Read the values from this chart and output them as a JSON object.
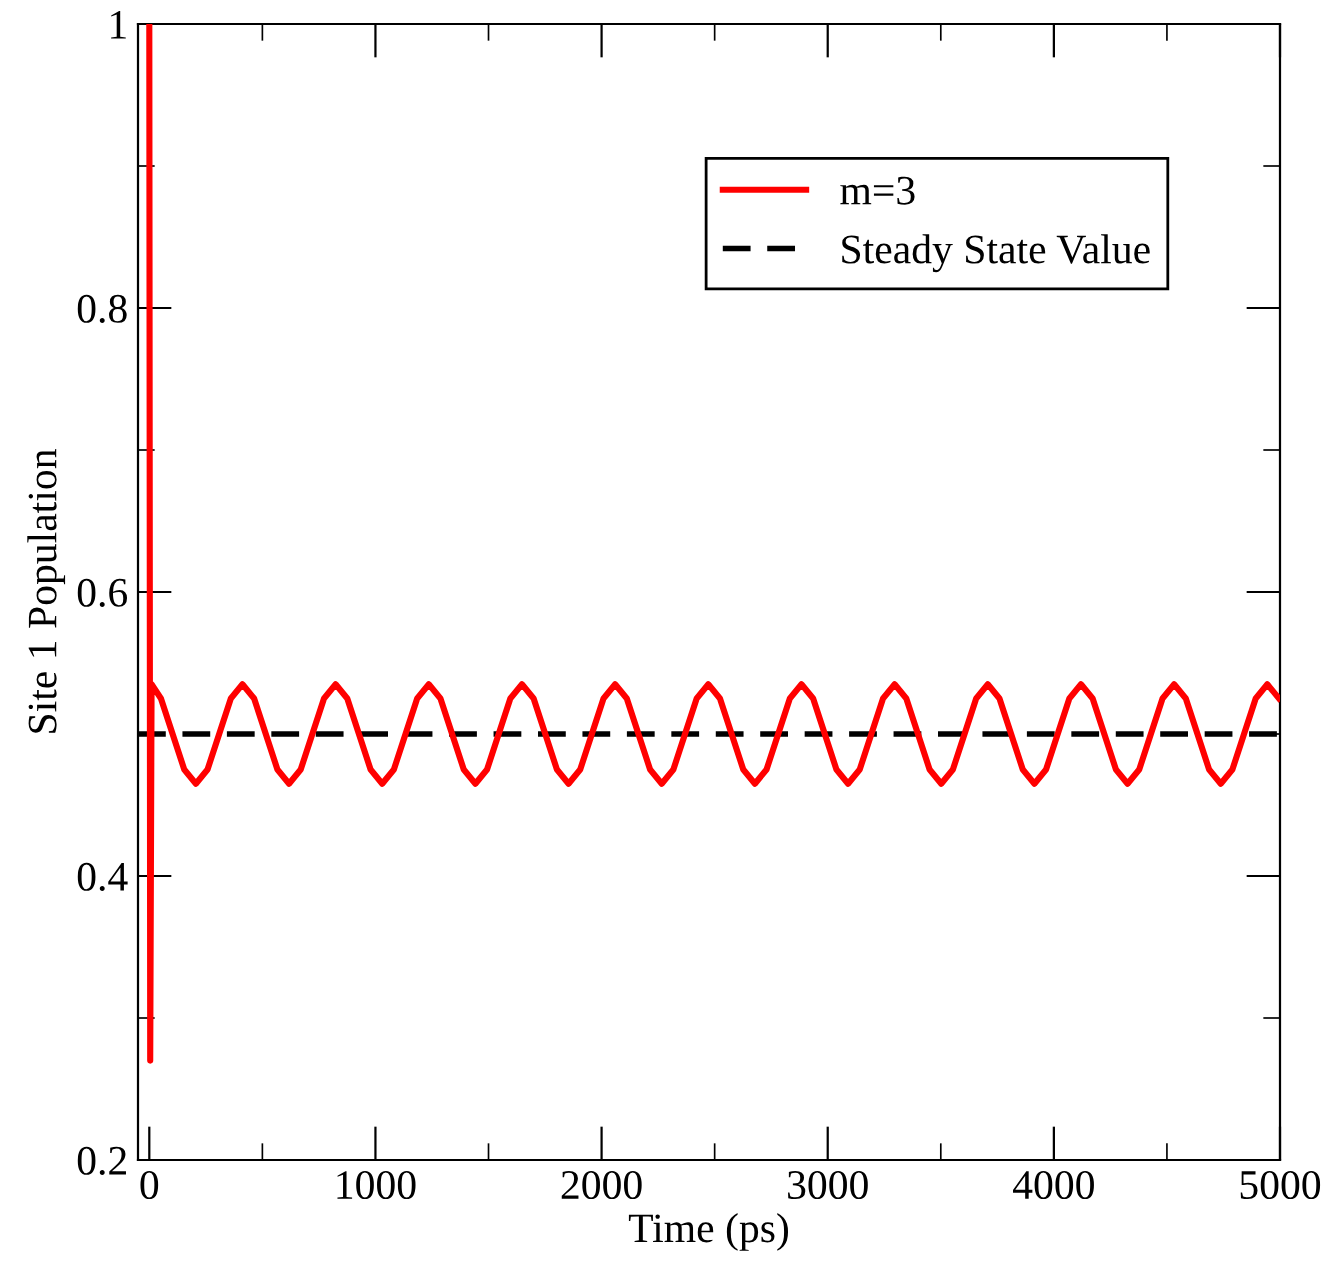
{
  "chart_data": {
    "type": "line",
    "xlabel": "Time (ps)",
    "ylabel": "Site 1 Population",
    "xlim": [
      -50,
      5000
    ],
    "ylim": [
      0.2,
      1
    ],
    "xticks": [
      0,
      {
        "value": 500,
        "label": null
      },
      1000,
      {
        "value": 1500,
        "label": null
      },
      2000,
      {
        "value": 2500,
        "label": null
      },
      3000,
      {
        "value": 3500,
        "label": null
      },
      4000,
      {
        "value": 4500,
        "label": null
      },
      5000
    ],
    "yticks": [
      0.2,
      {
        "value": 0.3,
        "label": null
      },
      0.4,
      {
        "value": 0.5,
        "label": null
      },
      0.6,
      {
        "value": 0.7,
        "label": null
      },
      0.8,
      {
        "value": 0.9,
        "label": null
      },
      1
    ],
    "grid": false,
    "legend": "top right",
    "marker": "none",
    "line_style": "solid",
    "series": [
      {
        "name": "m=3",
        "color": "#ff0000",
        "x": [
          0,
          4,
          10,
          51.5,
          103,
          154.5,
          206,
          257.5,
          309,
          360.5,
          412,
          463.5,
          515,
          566.5,
          618,
          669.5,
          721,
          772.5,
          824,
          875.5,
          927,
          978.5,
          1030,
          1081.5,
          1133,
          1184.5,
          1236,
          1287.5,
          1339,
          1390.5,
          1442,
          1493.5,
          1545,
          1596.5,
          1648,
          1699.5,
          1751,
          1802.5,
          1854,
          1905.5,
          1957,
          2008.5,
          2060,
          2111.5,
          2163,
          2214.5,
          2266,
          2317.5,
          2369,
          2420.5,
          2472,
          2523.5,
          2575,
          2626.5,
          2678,
          2729.5,
          2781,
          2832.5,
          2884,
          2935.5,
          2987,
          3038.5,
          3090,
          3141.5,
          3193,
          3244.5,
          3296,
          3347.5,
          3399,
          3450.5,
          3502,
          3553.5,
          3605,
          3656.5,
          3708,
          3759.5,
          3811,
          3862.5,
          3914,
          3965.5,
          4017,
          4068.5,
          4120,
          4171.5,
          4223,
          4274.5,
          4326,
          4377.5,
          4429,
          4480.5,
          4532,
          4583.5,
          4635,
          4686.5,
          4738,
          4789.5,
          4841,
          4892.5,
          4944,
          4995.5
        ],
        "values": [
          1.0,
          0.27,
          0.535,
          0.525,
          0.5,
          0.475,
          0.465,
          0.475,
          0.5,
          0.525,
          0.535,
          0.525,
          0.5,
          0.475,
          0.465,
          0.475,
          0.5,
          0.525,
          0.535,
          0.525,
          0.5,
          0.475,
          0.465,
          0.475,
          0.5,
          0.525,
          0.535,
          0.525,
          0.5,
          0.475,
          0.465,
          0.475,
          0.5,
          0.525,
          0.535,
          0.525,
          0.5,
          0.475,
          0.465,
          0.475,
          0.5,
          0.525,
          0.535,
          0.525,
          0.5,
          0.475,
          0.465,
          0.475,
          0.5,
          0.525,
          0.535,
          0.525,
          0.5,
          0.475,
          0.465,
          0.475,
          0.5,
          0.525,
          0.535,
          0.525,
          0.5,
          0.475,
          0.465,
          0.475,
          0.5,
          0.525,
          0.535,
          0.525,
          0.5,
          0.475,
          0.465,
          0.475,
          0.5,
          0.525,
          0.535,
          0.525,
          0.5,
          0.475,
          0.465,
          0.475,
          0.5,
          0.525,
          0.535,
          0.525,
          0.5,
          0.475,
          0.465,
          0.475,
          0.5,
          0.525,
          0.535,
          0.525,
          0.5,
          0.475,
          0.465,
          0.475,
          0.5,
          0.525,
          0.535,
          0.525
        ]
      }
    ],
    "ref_lines": [
      {
        "axis": "y",
        "value": 0.5,
        "label": "Steady State Value",
        "color": "#000000",
        "line_style": "dashed"
      }
    ]
  }
}
